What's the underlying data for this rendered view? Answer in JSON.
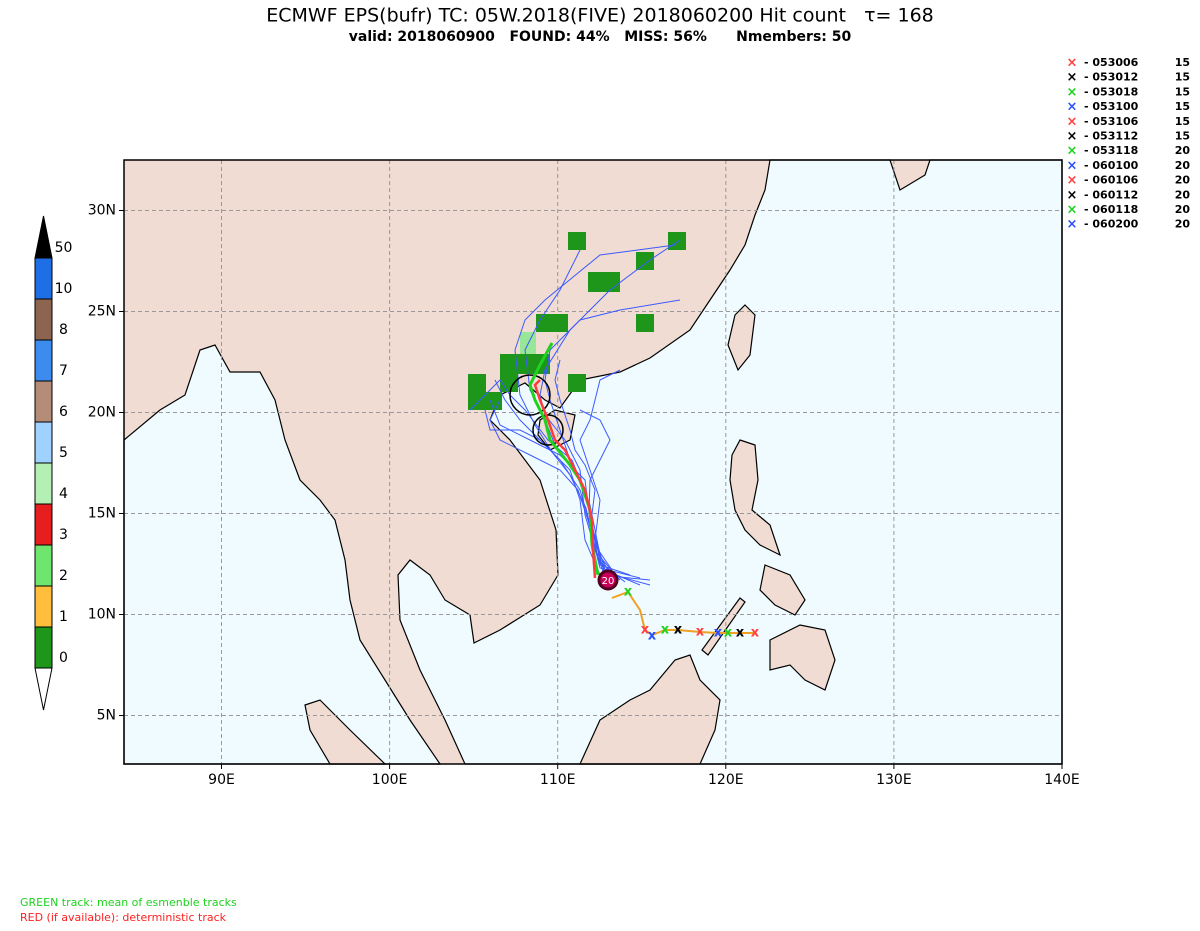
{
  "header": {
    "title": "ECMWF EPS(bufr) TC: 05W.2018(FIVE) 2018060200 Hit count   τ= 168",
    "subtitle": "valid: 2018060900   FOUND: 44%   MISS: 56%      Nmembers: 50"
  },
  "map": {
    "lonlim": [
      84.2,
      140
    ],
    "latlim": [
      2.6,
      32.5
    ],
    "lon_ticks": [
      {
        "value": 90,
        "label": "90E"
      },
      {
        "value": 100,
        "label": "100E"
      },
      {
        "value": 110,
        "label": "110E"
      },
      {
        "value": 120,
        "label": "120E"
      },
      {
        "value": 130,
        "label": "130E"
      },
      {
        "value": 140,
        "label": "140E"
      }
    ],
    "lat_ticks": [
      {
        "value": 5,
        "label": "5N"
      },
      {
        "value": 10,
        "label": "10N"
      },
      {
        "value": 15,
        "label": "15N"
      },
      {
        "value": 20,
        "label": "20N"
      },
      {
        "value": 25,
        "label": "25N"
      },
      {
        "value": 30,
        "label": "30N"
      }
    ],
    "grid": true,
    "storm_label": 20
  },
  "colorbar": {
    "levels": [
      0,
      1,
      2,
      3,
      4,
      5,
      6,
      7,
      8,
      10,
      50
    ],
    "colors": [
      "#1e9619",
      "#ffbe3c",
      "#6ee66e",
      "#e61e1e",
      "#b4f0b4",
      "#a0d2ff",
      "#b48c78",
      "#3c8cf0",
      "#8c6450",
      "#1e6ee6"
    ],
    "under_color": "#ffffff",
    "over_color": "#000000"
  },
  "legend": {
    "entries": [
      {
        "name": "- 053006",
        "count": 15,
        "color": "#ff4040"
      },
      {
        "name": "- 053012",
        "count": 15,
        "color": "#000000"
      },
      {
        "name": "- 053018",
        "count": 15,
        "color": "#1ed21e"
      },
      {
        "name": "- 053100",
        "count": 15,
        "color": "#2850ff"
      },
      {
        "name": "- 053106",
        "count": 15,
        "color": "#ff4040"
      },
      {
        "name": "- 053112",
        "count": 15,
        "color": "#000000"
      },
      {
        "name": "- 053118",
        "count": 20,
        "color": "#1ed21e"
      },
      {
        "name": "- 060100",
        "count": 20,
        "color": "#2850ff"
      },
      {
        "name": "- 060106",
        "count": 20,
        "color": "#ff4040"
      },
      {
        "name": "- 060112",
        "count": 20,
        "color": "#000000"
      },
      {
        "name": "- 060118",
        "count": 20,
        "color": "#1ed21e"
      },
      {
        "name": "- 060200",
        "count": 20,
        "color": "#2850ff"
      }
    ]
  },
  "footer": {
    "green_note": "GREEN track: mean of esmenble tracks",
    "red_note": "RED (if available): deterministic track"
  }
}
